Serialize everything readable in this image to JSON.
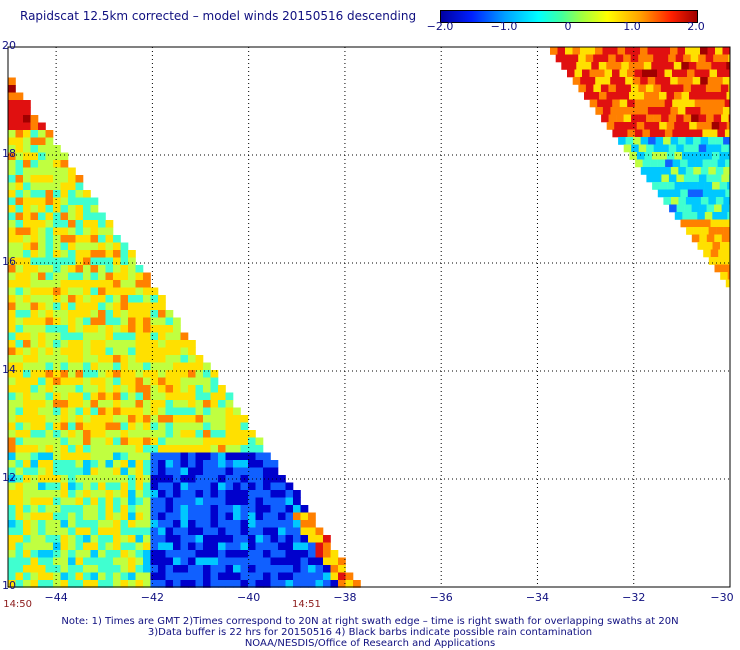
{
  "title": "Rapidscat 12.5km corrected – model winds 20150516 descending",
  "colorbar": {
    "ticks": [
      "−2.0",
      "−1.0",
      "0",
      "1.0",
      "2.0"
    ],
    "min": -2.0,
    "max": 2.0
  },
  "chart_data": {
    "type": "heatmap",
    "x_ticks": [
      "−44",
      "−42",
      "−40",
      "−38",
      "−36",
      "−34",
      "−32",
      "−30"
    ],
    "y_ticks": [
      "20",
      "18",
      "16",
      "14",
      "12",
      "10"
    ],
    "xlim": [
      -45,
      -30
    ],
    "ylim": [
      10,
      20
    ],
    "grid": true,
    "colormap": [
      "#0000cc",
      "#1060ff",
      "#00c8ff",
      "#40ffd0",
      "#c0ff40",
      "#ffe000",
      "#ff8000",
      "#e01010",
      "#a00000"
    ]
  },
  "times": [
    {
      "label": "14:50",
      "lon": -44.8
    },
    {
      "label": "14:51",
      "lon": -38.8
    }
  ],
  "notes": [
    "Note: 1) Times are GMT 2)Times correspond to 20N at right swath edge – time is right swath for overlapping swaths at 20N",
    "3)Data buffer is 22 hrs for 20150516 4) Black barbs indicate possible rain contamination",
    "NOAA/NESDIS/Office of Research and Applications"
  ]
}
